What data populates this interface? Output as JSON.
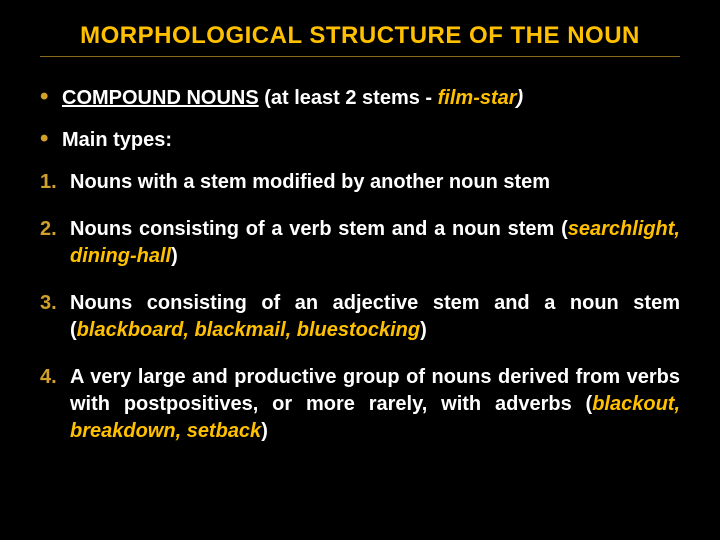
{
  "colors": {
    "background": "#000000",
    "title": "#ffc000",
    "underline_rule": "#8a6a1e",
    "text": "#ffffff",
    "bullet_marker": "#d0a02a",
    "number_marker": "#d0a02a",
    "emphasis": "#ffc000"
  },
  "title": "MORPHOLOGICAL STRUCTURE OF THE NOUN",
  "bullet1": {
    "lead": "COMPOUND NOUNS",
    "mid": " (at least 2 stems - ",
    "example": "film-star",
    "tail": ")"
  },
  "bullet2": "Main types:",
  "items": {
    "i1": "Nouns with a stem modified by another noun stem",
    "i2": {
      "lead": "Nouns consisting of a verb stem and a noun stem (",
      "example": "searchlight, dining-hall",
      "tail": ")"
    },
    "i3": {
      "lead": "Nouns consisting of an adjective stem and a noun stem (",
      "example": "blackboard, blackmail, bluestocking",
      "tail": ")"
    },
    "i4": {
      "lead": "A very large and productive group of nouns derived from verbs with postpositives, or more rarely, with adverbs (",
      "example": "blackout, breakdown, setback",
      "tail": ")"
    }
  }
}
